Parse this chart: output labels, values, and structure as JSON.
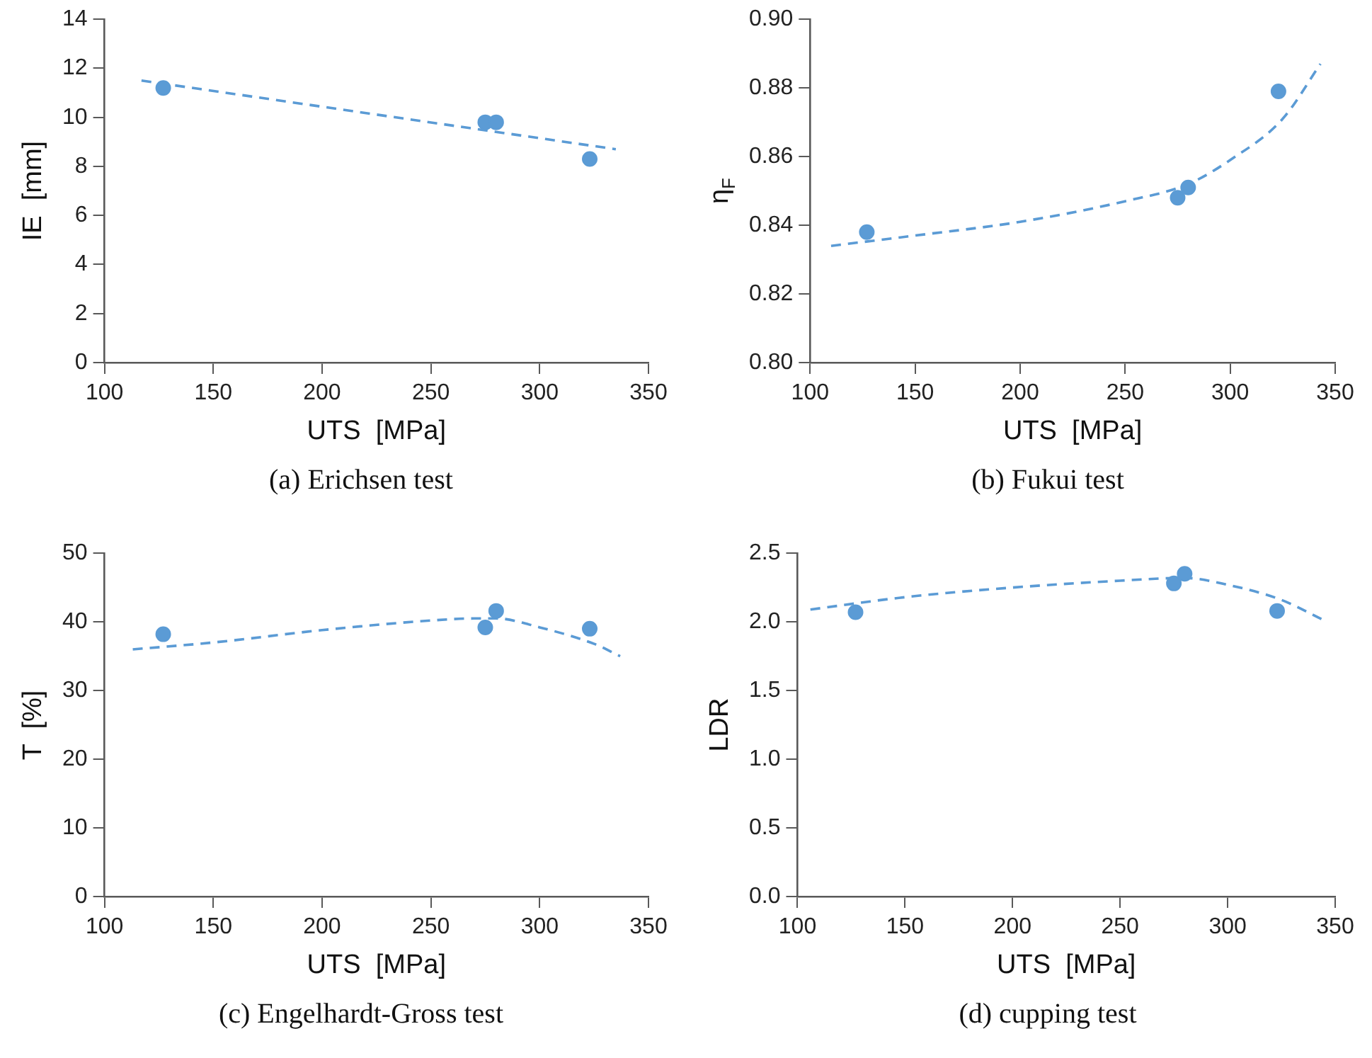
{
  "chart_data": [
    {
      "type": "scatter",
      "xlabel": "UTS  [MPa]",
      "ylabel": "IE  [mm]",
      "annotations": [
        "(a) Erichsen test"
      ],
      "x": [
        127,
        275,
        280,
        323
      ],
      "xlim": [
        100,
        350
      ],
      "xticks": [
        100,
        150,
        200,
        250,
        300,
        350
      ],
      "ylim": [
        0,
        14
      ],
      "yticks": [
        0,
        2,
        4,
        6,
        8,
        10,
        12,
        14
      ],
      "grid": false,
      "legend": false,
      "marker": "circle",
      "series": [
        {
          "color": "#5b9bd5",
          "values": [
            11.2,
            9.8,
            9.8,
            8.3
          ]
        },
        {
          "type": "line",
          "color": "#5b9bd5",
          "line_style": "dashed",
          "marker": "none",
          "x": [
            117,
            335
          ],
          "values": [
            11.5,
            8.7
          ]
        }
      ]
    },
    {
      "type": "scatter",
      "xlabel": "UTS  [MPa]",
      "ylabel": "η$_{F}$",
      "annotations": [
        "(b) Fukui test"
      ],
      "x": [
        127,
        275,
        280,
        323
      ],
      "xlim": [
        100,
        350
      ],
      "xticks": [
        100,
        150,
        200,
        250,
        300,
        350
      ],
      "ylim": [
        0.8,
        0.9
      ],
      "yticks": [
        {
          "value": 0.8,
          "label": "0.80"
        },
        0.82,
        0.84,
        0.86,
        0.88,
        {
          "value": 0.9,
          "label": "0.90"
        }
      ],
      "grid": false,
      "legend": false,
      "marker": "circle",
      "series": [
        {
          "color": "#5b9bd5",
          "values": [
            0.838,
            0.848,
            0.851,
            0.879
          ]
        },
        {
          "type": "line",
          "color": "#5b9bd5",
          "line_style": "dashed",
          "marker": "none",
          "x": [
            110,
            150,
            200,
            250,
            280,
            300,
            325,
            343
          ],
          "values": [
            0.834,
            0.837,
            0.841,
            0.847,
            0.852,
            0.859,
            0.871,
            0.887
          ]
        }
      ]
    },
    {
      "type": "scatter",
      "xlabel": "UTS  [MPa]",
      "ylabel": "T  [%]",
      "annotations": [
        "(c) Engelhardt-Gross test"
      ],
      "x": [
        127,
        275,
        280,
        323
      ],
      "xlim": [
        100,
        350
      ],
      "xticks": [
        100,
        150,
        200,
        250,
        300,
        350
      ],
      "ylim": [
        0,
        50
      ],
      "yticks": [
        0,
        10,
        20,
        30,
        40,
        50
      ],
      "grid": false,
      "legend": false,
      "marker": "circle",
      "series": [
        {
          "color": "#5b9bd5",
          "values": [
            38.2,
            39.2,
            41.6,
            39.0
          ]
        },
        {
          "type": "line",
          "color": "#5b9bd5",
          "line_style": "dashed",
          "marker": "none",
          "x": [
            113,
            150,
            200,
            250,
            270,
            280,
            300,
            325,
            337
          ],
          "values": [
            36,
            37,
            38.8,
            40.2,
            40.5,
            40.5,
            39.2,
            36.8,
            35
          ]
        }
      ]
    },
    {
      "type": "scatter",
      "xlabel": "UTS  [MPa]",
      "ylabel": "LDR",
      "annotations": [
        "(d) cupping test"
      ],
      "x": [
        127,
        275,
        280,
        323
      ],
      "xlim": [
        100,
        350
      ],
      "xticks": [
        100,
        150,
        200,
        250,
        300,
        350
      ],
      "ylim": [
        0,
        2.5
      ],
      "yticks": [
        {
          "value": 0,
          "label": "0.0"
        },
        0.5,
        {
          "value": 1,
          "label": "1.0"
        },
        1.5,
        {
          "value": 2,
          "label": "2.0"
        },
        2.5
      ],
      "grid": false,
      "legend": false,
      "marker": "circle",
      "series": [
        {
          "color": "#5b9bd5",
          "values": [
            2.07,
            2.28,
            2.35,
            2.08
          ]
        },
        {
          "type": "line",
          "color": "#5b9bd5",
          "line_style": "dashed",
          "marker": "none",
          "x": [
            106,
            150,
            200,
            250,
            280,
            300,
            325,
            345
          ],
          "values": [
            2.09,
            2.18,
            2.25,
            2.3,
            2.32,
            2.27,
            2.16,
            2.01
          ]
        }
      ]
    }
  ]
}
